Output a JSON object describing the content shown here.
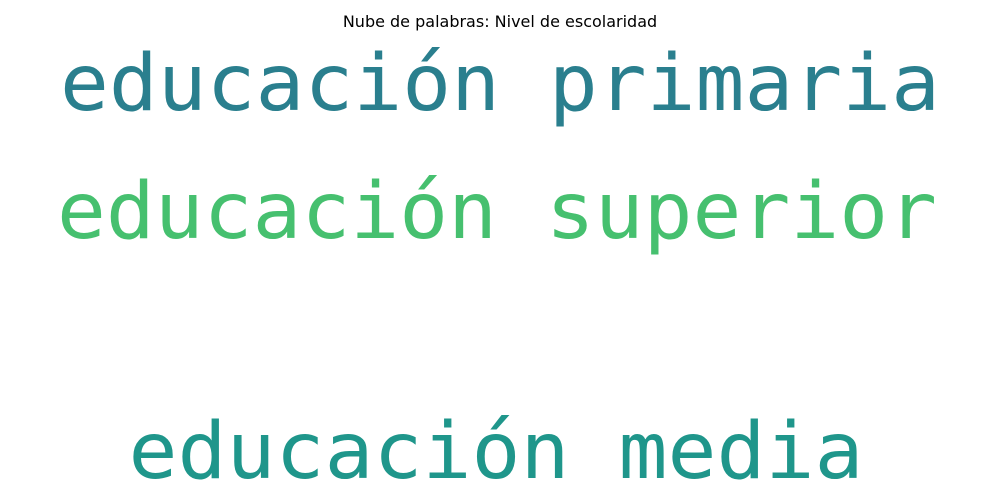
{
  "title": "Nube de palabras: Nivel de escolaridad",
  "chart_data": {
    "type": "wordcloud",
    "title": "Nube de palabras: Nivel de escolaridad",
    "words": [
      {
        "text": "educación primaria",
        "color": "#2a7f8e"
      },
      {
        "text": "educación superior",
        "color": "#46c06f"
      },
      {
        "text": "educación media",
        "color": "#1f968b"
      }
    ]
  }
}
